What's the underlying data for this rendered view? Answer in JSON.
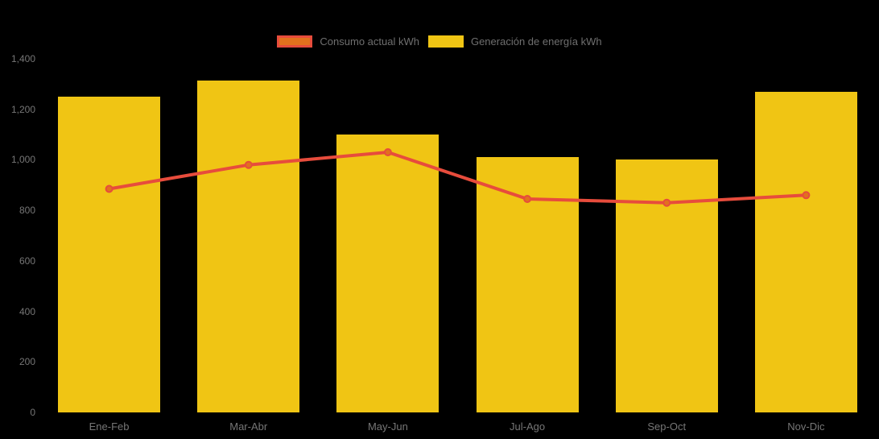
{
  "legend": {
    "items": [
      {
        "label": "Consumo actual kWh"
      },
      {
        "label": "Generación de energía kWh"
      }
    ]
  },
  "colors": {
    "background": "#000000",
    "bar": "#F0C514",
    "line": "#E74C3C",
    "marker_fill": "#E2711D",
    "axis_text": "#767676",
    "legend_text": "#6F6F6F"
  },
  "chart_data": {
    "type": "bar",
    "subtype": "combo-bar-line",
    "categories": [
      "Ene-Feb",
      "Mar-Abr",
      "May-Jun",
      "Jul-Ago",
      "Sep-Oct",
      "Nov-Dic"
    ],
    "series": [
      {
        "name": "Consumo actual kWh",
        "type": "line",
        "values": [
          885,
          980,
          1030,
          845,
          830,
          860
        ]
      },
      {
        "name": "Generación de energía kWh",
        "type": "bar",
        "values": [
          1250,
          1315,
          1100,
          1010,
          1000,
          1270
        ]
      }
    ],
    "title": "",
    "xlabel": "",
    "ylabel": "",
    "ylim": [
      0,
      1400
    ],
    "y_ticks": [
      "0",
      "200",
      "400",
      "600",
      "800",
      "1,000",
      "1,200",
      "1,400"
    ],
    "y_tick_values": [
      0,
      200,
      400,
      600,
      800,
      1000,
      1200,
      1400
    ],
    "grid": false,
    "legend_position": "top"
  }
}
